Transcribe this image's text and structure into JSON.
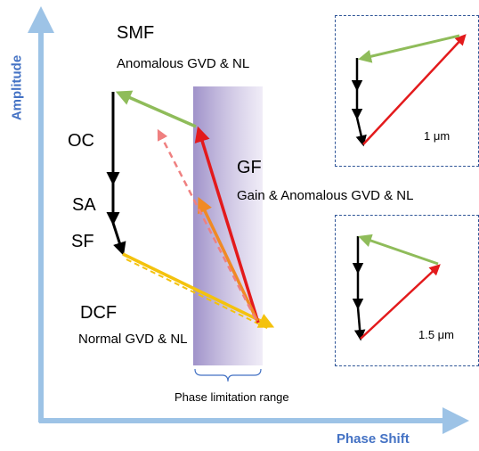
{
  "axes": {
    "y_label": "Amplitude",
    "x_label": "Phase Shift"
  },
  "labels": {
    "smf": "SMF",
    "smf_desc": "Anomalous GVD  &  NL",
    "oc": "OC",
    "sa": "SA",
    "sf": "SF",
    "gf": "GF",
    "gf_desc": "Gain  &  Anomalous GVD  &  NL",
    "dcf": "DCF",
    "dcf_desc": "Normal GVD  &  NL",
    "phase_range": "Phase limitation range"
  },
  "insets": [
    {
      "wavelength": "1 μm"
    },
    {
      "wavelength": "1.5 μm"
    }
  ],
  "colors": {
    "axis": "#9dc3e6",
    "axis_label": "#4472c4",
    "smf_arrow": "#8fbc5a",
    "gf_arrow": "#e31a1c",
    "dcf_arrow": "#f4c20d",
    "orange_arrow": "#f08a24",
    "dashed_red": "#ef8080",
    "phase_band": "#b7a7d6",
    "inset_border": "#2f5597"
  }
}
